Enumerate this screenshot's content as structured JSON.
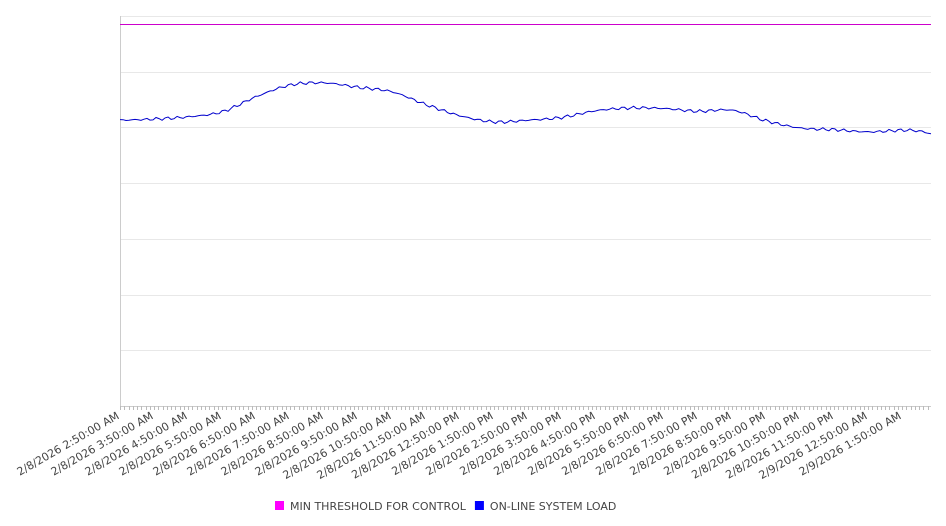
{
  "chart_data": {
    "type": "line",
    "title": "",
    "xlabel": "",
    "ylabel": "",
    "grid": true,
    "legend_position": "bottom",
    "y_axis_labels_visible": false,
    "ylim": [
      0,
      7
    ],
    "x_tick_labels": [
      "2/8/2026 2:50:00 AM",
      "2/8/2026 3:50:00 AM",
      "2/8/2026 4:50:00 AM",
      "2/8/2026 5:50:00 AM",
      "2/8/2026 6:50:00 AM",
      "2/8/2026 7:50:00 AM",
      "2/8/2026 8:50:00 AM",
      "2/8/2026 9:50:00 AM",
      "2/8/2026 10:50:00 AM",
      "2/8/2026 11:50:00 AM",
      "2/8/2026 12:50:00 PM",
      "2/8/2026 1:50:00 PM",
      "2/8/2026 2:50:00 PM",
      "2/8/2026 3:50:00 PM",
      "2/8/2026 4:50:00 PM",
      "2/8/2026 5:50:00 PM",
      "2/8/2026 6:50:00 PM",
      "2/8/2026 7:50:00 PM",
      "2/8/2026 8:50:00 PM",
      "2/8/2026 9:50:00 PM",
      "2/8/2026 10:50:00 PM",
      "2/8/2026 11:50:00 PM",
      "2/9/2026 12:50:00 AM",
      "2/9/2026 1:50:00 AM"
    ],
    "series": [
      {
        "name": "MIN THRESHOLD FOR CONTROL",
        "color": "#cc00cc",
        "legend_color": "#ff00ff",
        "values": [
          6.86,
          6.86,
          6.86,
          6.86,
          6.86,
          6.86,
          6.86,
          6.86,
          6.86,
          6.86,
          6.86,
          6.86,
          6.86,
          6.86,
          6.86,
          6.86,
          6.86,
          6.86,
          6.86,
          6.86,
          6.86,
          6.86,
          6.86,
          6.86
        ]
      },
      {
        "name": "ON-LINE SYSTEM LOAD",
        "color": "#0000cc",
        "legend_color": "#0000ff",
        "values": [
          5.13,
          5.15,
          5.19,
          5.28,
          5.55,
          5.76,
          5.8,
          5.72,
          5.64,
          5.41,
          5.21,
          5.1,
          5.13,
          5.18,
          5.3,
          5.35,
          5.34,
          5.29,
          5.31,
          5.12,
          4.99,
          4.96,
          4.92,
          4.95
        ]
      }
    ]
  }
}
